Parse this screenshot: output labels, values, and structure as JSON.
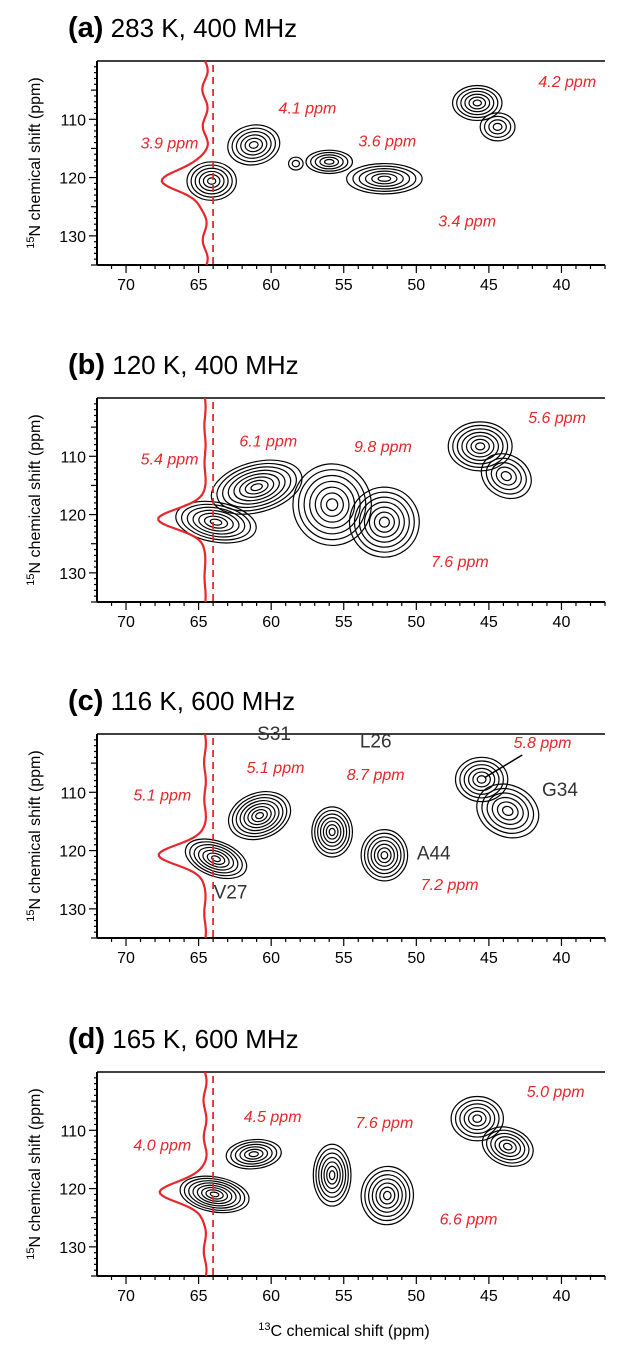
{
  "figure": {
    "xlabel_sup": "13",
    "xlabel_rest": "C chemical shift (ppm)",
    "ylabel_sup": "15",
    "ylabel_rest": "N chemical shift (ppm)"
  },
  "colors": {
    "annotation": "#e8262b",
    "contour": "#000000",
    "axis": "#000000"
  },
  "chart_data": [
    {
      "type": "contour",
      "panel_letter": "(a)",
      "title_rest": "283 K, 400 MHz",
      "xlim": [
        72,
        37
      ],
      "ylim": [
        135,
        100
      ],
      "xticks": [
        70,
        65,
        60,
        55,
        50,
        45,
        40
      ],
      "yticks": [
        110,
        120,
        130
      ],
      "slice_position_ppm": 64.0,
      "slice_peak_ppm": 120.7,
      "slice_linewidth_label": "3.9 ppm",
      "slice_wiggle": 0.9,
      "peaks": [
        {
          "c": 64.1,
          "n": 120.6,
          "rx": 1.7,
          "ry": 3.3,
          "rot": 0,
          "levels": 6
        },
        {
          "c": 61.2,
          "n": 114.4,
          "rx": 1.8,
          "ry": 3.4,
          "rot": -10,
          "levels": 6
        },
        {
          "c": 56.0,
          "n": 117.3,
          "rx": 1.6,
          "ry": 2.0,
          "rot": 0,
          "levels": 5
        },
        {
          "c": 52.2,
          "n": 120.2,
          "rx": 2.6,
          "ry": 2.6,
          "rot": 0,
          "levels": 6
        },
        {
          "c": 45.8,
          "n": 107.2,
          "rx": 1.7,
          "ry": 3.0,
          "rot": 0,
          "levels": 6
        },
        {
          "c": 44.4,
          "n": 111.3,
          "rx": 1.2,
          "ry": 2.4,
          "rot": 0,
          "levels": 4
        },
        {
          "c": 58.3,
          "n": 117.6,
          "rx": 0.5,
          "ry": 1.1,
          "rot": 0,
          "levels": 2
        }
      ],
      "annotations": [
        {
          "text": "3.9 ppm",
          "c": 67.0,
          "n": 115.0,
          "color": "red"
        },
        {
          "text": "4.1 ppm",
          "c": 57.5,
          "n": 109.0,
          "color": "red"
        },
        {
          "text": "3.6 ppm",
          "c": 52.0,
          "n": 114.7,
          "color": "red"
        },
        {
          "text": "3.4 ppm",
          "c": 46.5,
          "n": 128.4,
          "color": "red"
        },
        {
          "text": "4.2 ppm",
          "c": 39.6,
          "n": 104.5,
          "color": "red"
        }
      ]
    },
    {
      "type": "contour",
      "panel_letter": "(b)",
      "title_rest": "120 K, 400 MHz",
      "xlim": [
        72,
        37
      ],
      "ylim": [
        135,
        100
      ],
      "xticks": [
        70,
        65,
        60,
        55,
        50,
        45,
        40
      ],
      "yticks": [
        110,
        120,
        130
      ],
      "slice_position_ppm": 64.0,
      "slice_peak_ppm": 120.8,
      "slice_linewidth_label": "5.4 ppm",
      "slice_wiggle": 0.2,
      "peaks": [
        {
          "c": 63.8,
          "n": 121.3,
          "rx": 2.8,
          "ry": 3.4,
          "rot": 10,
          "levels": 7
        },
        {
          "c": 61.0,
          "n": 115.3,
          "rx": 3.2,
          "ry": 4.3,
          "rot": -15,
          "levels": 8
        },
        {
          "c": 55.8,
          "n": 118.3,
          "rx": 2.7,
          "ry": 7.0,
          "rot": -5,
          "levels": 7
        },
        {
          "c": 52.2,
          "n": 121.3,
          "rx": 2.4,
          "ry": 6.0,
          "rot": 10,
          "levels": 7
        },
        {
          "c": 45.6,
          "n": 108.3,
          "rx": 2.2,
          "ry": 4.2,
          "rot": 0,
          "levels": 7
        },
        {
          "c": 43.8,
          "n": 113.4,
          "rx": 1.8,
          "ry": 3.6,
          "rot": 30,
          "levels": 5
        }
      ],
      "annotations": [
        {
          "text": "5.4 ppm",
          "c": 67.0,
          "n": 111.4,
          "color": "red"
        },
        {
          "text": "6.1 ppm",
          "c": 60.2,
          "n": 108.3,
          "color": "red"
        },
        {
          "text": "9.8 ppm",
          "c": 52.3,
          "n": 109.3,
          "color": "red"
        },
        {
          "text": "7.6 ppm",
          "c": 47.0,
          "n": 129.0,
          "color": "red"
        },
        {
          "text": "5.6 ppm",
          "c": 40.3,
          "n": 104.3,
          "color": "red"
        }
      ]
    },
    {
      "type": "contour",
      "panel_letter": "(c)",
      "title_rest": "116 K, 600 MHz",
      "xlim": [
        72,
        37
      ],
      "ylim": [
        135,
        100
      ],
      "xticks": [
        70,
        65,
        60,
        55,
        50,
        45,
        40
      ],
      "yticks": [
        110,
        120,
        130
      ],
      "slice_position_ppm": 64.0,
      "slice_peak_ppm": 120.8,
      "slice_linewidth_label": "5.1 ppm",
      "slice_wiggle": 0.3,
      "peaks": [
        {
          "c": 63.8,
          "n": 121.4,
          "rx": 2.2,
          "ry": 3.0,
          "rot": 20,
          "levels": 7
        },
        {
          "c": 60.8,
          "n": 114.0,
          "rx": 2.2,
          "ry": 3.9,
          "rot": -20,
          "levels": 8
        },
        {
          "c": 55.8,
          "n": 116.8,
          "rx": 1.4,
          "ry": 4.3,
          "rot": 0,
          "levels": 7
        },
        {
          "c": 52.2,
          "n": 120.8,
          "rx": 1.6,
          "ry": 4.4,
          "rot": 0,
          "levels": 7
        },
        {
          "c": 45.5,
          "n": 107.8,
          "rx": 1.8,
          "ry": 3.8,
          "rot": 0,
          "levels": 6
        },
        {
          "c": 43.7,
          "n": 113.2,
          "rx": 2.2,
          "ry": 4.4,
          "rot": 25,
          "levels": 6
        }
      ],
      "annotations": [
        {
          "text": "5.1 ppm",
          "c": 67.5,
          "n": 111.4,
          "color": "red"
        },
        {
          "text": "S31",
          "c": 59.8,
          "n": 101.0,
          "color": "black"
        },
        {
          "text": "5.1 ppm",
          "c": 59.7,
          "n": 106.7,
          "color": "red"
        },
        {
          "text": "L26",
          "c": 52.8,
          "n": 102.3,
          "color": "black"
        },
        {
          "text": "8.7 ppm",
          "c": 52.8,
          "n": 107.9,
          "color": "red"
        },
        {
          "text": "A44",
          "c": 48.8,
          "n": 121.5,
          "color": "black"
        },
        {
          "text": "7.2 ppm",
          "c": 47.7,
          "n": 126.8,
          "color": "red"
        },
        {
          "text": "V27",
          "c": 62.8,
          "n": 128.2,
          "color": "black"
        },
        {
          "text": "5.8 ppm",
          "c": 41.3,
          "n": 102.4,
          "color": "red"
        },
        {
          "text": "G34",
          "c": 40.1,
          "n": 110.6,
          "color": "black"
        }
      ],
      "pointer": {
        "from_c": 42.7,
        "from_n": 103.6,
        "to_c": 45.3,
        "to_n": 107.5
      }
    },
    {
      "type": "contour",
      "panel_letter": "(d)",
      "title_rest": "165 K, 600 MHz",
      "xlim": [
        72,
        37
      ],
      "ylim": [
        135,
        100
      ],
      "xticks": [
        70,
        65,
        60,
        55,
        50,
        45,
        40
      ],
      "yticks": [
        110,
        120,
        130
      ],
      "slice_position_ppm": 64.0,
      "slice_peak_ppm": 120.7,
      "slice_linewidth_label": "4.0 ppm",
      "slice_wiggle": 0.5,
      "peaks": [
        {
          "c": 63.9,
          "n": 121.0,
          "rx": 2.4,
          "ry": 3.0,
          "rot": 10,
          "levels": 8
        },
        {
          "c": 61.2,
          "n": 114.1,
          "rx": 1.9,
          "ry": 2.5,
          "rot": -5,
          "levels": 6
        },
        {
          "c": 55.8,
          "n": 117.7,
          "rx": 1.3,
          "ry": 5.3,
          "rot": 0,
          "levels": 7
        },
        {
          "c": 52.0,
          "n": 121.2,
          "rx": 1.8,
          "ry": 5.0,
          "rot": 5,
          "levels": 7
        },
        {
          "c": 45.8,
          "n": 108.0,
          "rx": 1.8,
          "ry": 3.8,
          "rot": 0,
          "levels": 6
        },
        {
          "c": 43.7,
          "n": 112.8,
          "rx": 1.8,
          "ry": 3.2,
          "rot": 20,
          "levels": 6
        }
      ],
      "annotations": [
        {
          "text": "4.0 ppm",
          "c": 67.5,
          "n": 113.5,
          "color": "red"
        },
        {
          "text": "4.5 ppm",
          "c": 59.9,
          "n": 108.6,
          "color": "red"
        },
        {
          "text": "7.6 ppm",
          "c": 52.2,
          "n": 109.6,
          "color": "red"
        },
        {
          "text": "6.6 ppm",
          "c": 46.4,
          "n": 126.2,
          "color": "red"
        },
        {
          "text": "5.0 ppm",
          "c": 40.4,
          "n": 104.3,
          "color": "red"
        }
      ]
    }
  ]
}
